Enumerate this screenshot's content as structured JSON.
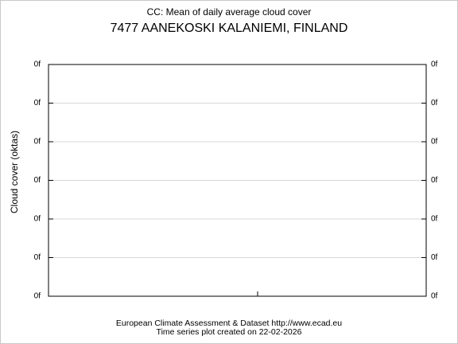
{
  "chart_data": {
    "type": "line",
    "title": "CC: Mean of daily average cloud cover",
    "subtitle": "7477 AANEKOSKI KALANIEMI, FINLAND",
    "ylabel": "Cloud cover (oktas)",
    "source": "European Climate Assessment & Dataset  http://www.ecad.eu",
    "created": "Time series plot created on 22-02-2026",
    "ylim": [
      0,
      6
    ],
    "yticks": [
      {
        "value": 0,
        "label": "0f"
      },
      {
        "value": 1,
        "label": "0f"
      },
      {
        "value": 2,
        "label": "0f"
      },
      {
        "value": 3,
        "label": "0f"
      },
      {
        "value": 4,
        "label": "0f"
      },
      {
        "value": 5,
        "label": "0f"
      },
      {
        "value": 6,
        "label": "0f"
      }
    ],
    "y2lim": [
      0,
      6
    ],
    "y2ticks": [
      {
        "value": 0,
        "label": "0f"
      },
      {
        "value": 1,
        "label": "0f"
      },
      {
        "value": 2,
        "label": "0f"
      },
      {
        "value": 3,
        "label": "0f"
      },
      {
        "value": 4,
        "label": "0f"
      },
      {
        "value": 5,
        "label": "0f"
      },
      {
        "value": 6,
        "label": "0f"
      }
    ],
    "grid": true
  }
}
